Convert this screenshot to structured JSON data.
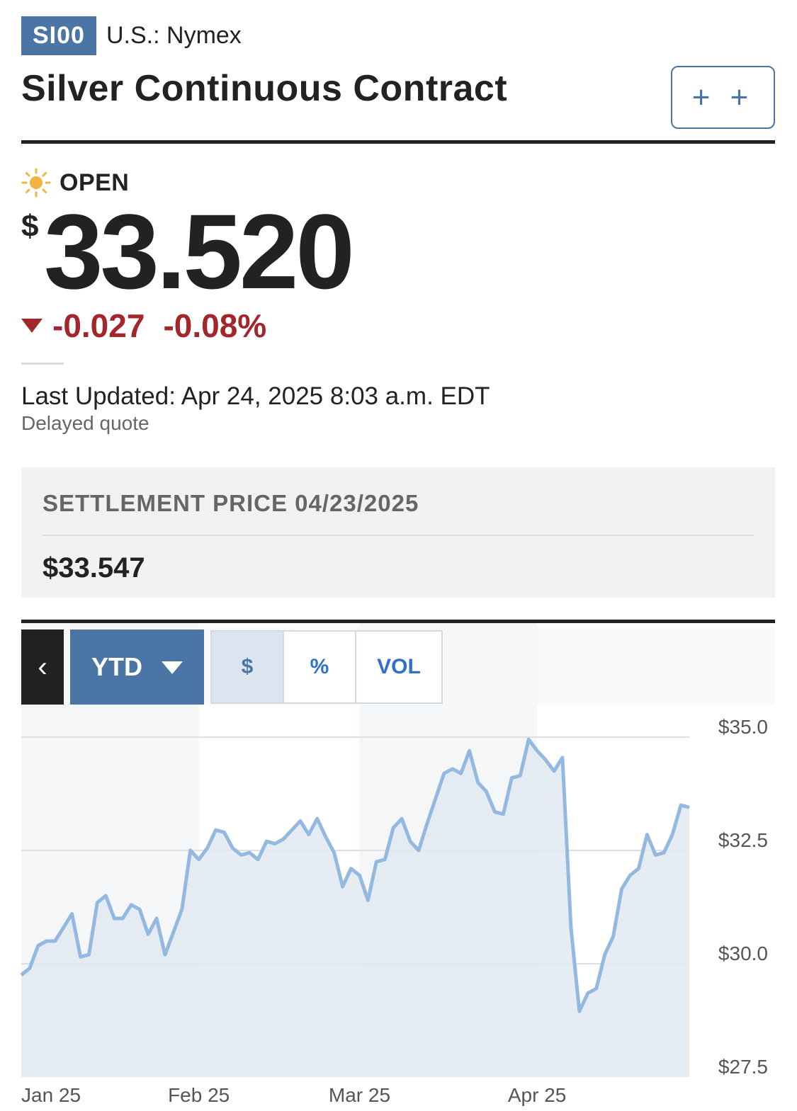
{
  "header": {
    "ticker": "SI00",
    "exchange": "U.S.: Nymex",
    "title": "Silver Continuous Contract",
    "watch_label": "+ +"
  },
  "quote": {
    "status": "OPEN",
    "currency": "$",
    "price": "33.520",
    "change": "-0.027",
    "change_pct": "-0.08%",
    "last_updated": "Last Updated: Apr 24, 2025 8:03 a.m. EDT",
    "delayed": "Delayed quote"
  },
  "settlement": {
    "label": "SETTLEMENT PRICE 04/23/2025",
    "value": "$33.547"
  },
  "controls": {
    "back_label": "‹",
    "range_label": "YTD",
    "modes": [
      "$",
      "%",
      "VOL"
    ],
    "active_mode": "$"
  },
  "colors": {
    "accent": "#4a75a5",
    "negative": "#a3262b",
    "line": "#94b9e1",
    "fill": "#e2e9f1"
  },
  "chart_data": {
    "type": "area",
    "x": [
      "Jan 02",
      "Jan 03",
      "Jan 06",
      "Jan 07",
      "Jan 08",
      "Jan 09",
      "Jan 10",
      "Jan 13",
      "Jan 14",
      "Jan 15",
      "Jan 16",
      "Jan 17",
      "Jan 20",
      "Jan 21",
      "Jan 22",
      "Jan 23",
      "Jan 24",
      "Jan 27",
      "Jan 28",
      "Jan 29",
      "Jan 30",
      "Jan 31",
      "Feb 03",
      "Feb 04",
      "Feb 05",
      "Feb 06",
      "Feb 07",
      "Feb 10",
      "Feb 11",
      "Feb 12",
      "Feb 13",
      "Feb 14",
      "Feb 17",
      "Feb 18",
      "Feb 19",
      "Feb 20",
      "Feb 21",
      "Feb 24",
      "Feb 25",
      "Feb 26",
      "Feb 27",
      "Feb 28",
      "Mar 03",
      "Mar 04",
      "Mar 05",
      "Mar 06",
      "Mar 07",
      "Mar 10",
      "Mar 11",
      "Mar 12",
      "Mar 13",
      "Mar 14",
      "Mar 17",
      "Mar 18",
      "Mar 19",
      "Mar 20",
      "Mar 21",
      "Mar 24",
      "Mar 25",
      "Mar 26",
      "Mar 27",
      "Mar 28",
      "Mar 31",
      "Apr 01",
      "Apr 02",
      "Apr 03",
      "Apr 04",
      "Apr 07",
      "Apr 08",
      "Apr 09",
      "Apr 10",
      "Apr 11",
      "Apr 14",
      "Apr 15",
      "Apr 16",
      "Apr 17",
      "Apr 21",
      "Apr 22",
      "Apr 23",
      "Apr 24"
    ],
    "values": [
      29.75,
      29.9,
      30.4,
      30.5,
      30.5,
      30.8,
      31.1,
      30.15,
      30.2,
      31.35,
      31.5,
      31.0,
      31.0,
      31.3,
      31.2,
      30.65,
      31.0,
      30.2,
      30.7,
      31.2,
      32.5,
      32.3,
      32.55,
      32.95,
      32.9,
      32.55,
      32.4,
      32.45,
      32.3,
      32.7,
      32.65,
      32.75,
      32.95,
      33.15,
      32.85,
      33.2,
      32.8,
      32.45,
      31.7,
      32.1,
      31.95,
      31.4,
      32.25,
      32.3,
      33.0,
      33.2,
      32.7,
      32.5,
      33.1,
      33.65,
      34.2,
      34.3,
      34.2,
      34.7,
      34.0,
      33.8,
      33.35,
      33.3,
      34.1,
      34.15,
      34.95,
      34.7,
      34.5,
      34.25,
      34.55,
      30.8,
      28.95,
      29.35,
      29.45,
      30.2,
      30.6,
      31.65,
      31.95,
      32.1,
      32.85,
      32.4,
      32.45,
      32.85,
      33.5,
      33.45
    ],
    "x_tick_labels": [
      "Jan 25",
      "Feb 25",
      "Mar 25",
      "Apr 25"
    ],
    "x_tick_index": [
      0,
      21,
      40,
      61
    ],
    "y_ticks": [
      35.0,
      32.5,
      30.0,
      27.5
    ],
    "y_tick_labels": [
      "$35.0",
      "$32.5",
      "$30.0",
      "$27.5"
    ],
    "ylim": [
      27.5,
      35.0
    ],
    "grid": true,
    "title": "",
    "xlabel": "",
    "ylabel": ""
  }
}
